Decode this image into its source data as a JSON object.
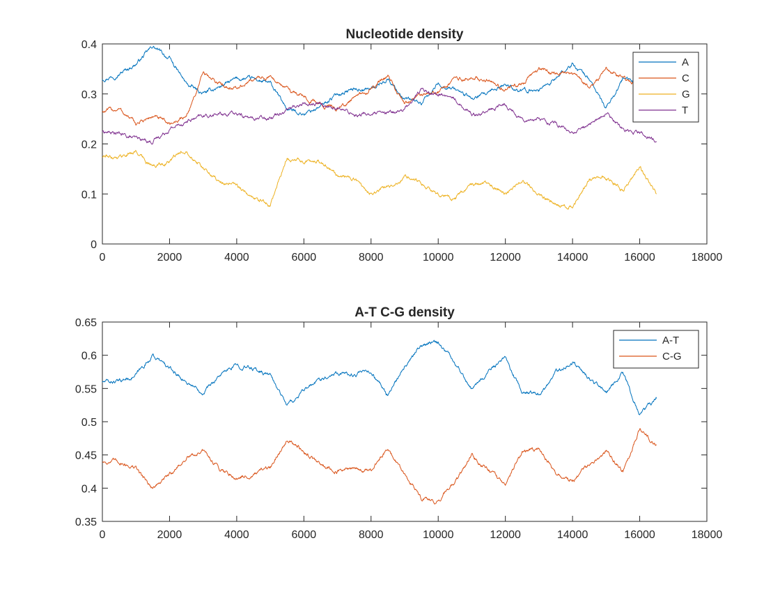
{
  "chart_data": [
    {
      "type": "line",
      "title": "Nucleotide density",
      "xlabel": "",
      "ylabel": "",
      "xlim": [
        0,
        18000
      ],
      "ylim": [
        0,
        0.4
      ],
      "xticks": [
        0,
        2000,
        4000,
        6000,
        8000,
        10000,
        12000,
        14000,
        16000,
        18000
      ],
      "xtick_labels": [
        "0",
        "2000",
        "4000",
        "6000",
        "8000",
        "10000",
        "12000",
        "14000",
        "16000",
        "18000"
      ],
      "yticks": [
        0,
        0.1,
        0.2,
        0.3,
        0.4
      ],
      "ytick_labels": [
        "0",
        "0.1",
        "0.2",
        "0.3",
        "0.4"
      ],
      "grid": false,
      "legend_position": "top-right",
      "x": [
        0,
        500,
        1000,
        1500,
        2000,
        2500,
        3000,
        3500,
        4000,
        4500,
        5000,
        5500,
        6000,
        6500,
        7000,
        7500,
        8000,
        8500,
        9000,
        9500,
        10000,
        10500,
        11000,
        11500,
        12000,
        12500,
        13000,
        13500,
        14000,
        14500,
        15000,
        15500,
        16000,
        16500
      ],
      "series": [
        {
          "name": "A",
          "color": "#0072BD",
          "values": [
            0.33,
            0.34,
            0.36,
            0.395,
            0.37,
            0.32,
            0.3,
            0.315,
            0.33,
            0.33,
            0.32,
            0.27,
            0.26,
            0.275,
            0.3,
            0.31,
            0.31,
            0.33,
            0.29,
            0.28,
            0.32,
            0.31,
            0.29,
            0.3,
            0.32,
            0.305,
            0.31,
            0.33,
            0.36,
            0.33,
            0.27,
            0.33,
            0.32,
            0.3
          ]
        },
        {
          "name": "C",
          "color": "#D95319",
          "values": [
            0.265,
            0.27,
            0.24,
            0.255,
            0.24,
            0.255,
            0.34,
            0.32,
            0.31,
            0.33,
            0.335,
            0.31,
            0.295,
            0.28,
            0.27,
            0.29,
            0.31,
            0.335,
            0.28,
            0.3,
            0.305,
            0.33,
            0.33,
            0.33,
            0.31,
            0.32,
            0.35,
            0.34,
            0.34,
            0.31,
            0.35,
            0.33,
            0.32,
            0.31
          ]
        },
        {
          "name": "G",
          "color": "#EDB120",
          "values": [
            0.175,
            0.175,
            0.185,
            0.155,
            0.165,
            0.19,
            0.15,
            0.125,
            0.115,
            0.09,
            0.08,
            0.17,
            0.165,
            0.165,
            0.14,
            0.13,
            0.1,
            0.115,
            0.135,
            0.12,
            0.1,
            0.09,
            0.12,
            0.12,
            0.1,
            0.13,
            0.1,
            0.08,
            0.075,
            0.13,
            0.13,
            0.11,
            0.155,
            0.1
          ]
        },
        {
          "name": "T",
          "color": "#7E2F8E",
          "values": [
            0.225,
            0.22,
            0.21,
            0.205,
            0.23,
            0.245,
            0.255,
            0.26,
            0.26,
            0.25,
            0.255,
            0.27,
            0.28,
            0.28,
            0.27,
            0.26,
            0.26,
            0.26,
            0.27,
            0.31,
            0.3,
            0.29,
            0.26,
            0.265,
            0.28,
            0.25,
            0.25,
            0.24,
            0.22,
            0.24,
            0.26,
            0.23,
            0.225,
            0.205
          ]
        }
      ]
    },
    {
      "type": "line",
      "title": "A-T C-G density",
      "xlabel": "",
      "ylabel": "",
      "xlim": [
        0,
        18000
      ],
      "ylim": [
        0.35,
        0.65
      ],
      "xticks": [
        0,
        2000,
        4000,
        6000,
        8000,
        10000,
        12000,
        14000,
        16000,
        18000
      ],
      "xtick_labels": [
        "0",
        "2000",
        "4000",
        "6000",
        "8000",
        "10000",
        "12000",
        "14000",
        "16000",
        "18000"
      ],
      "yticks": [
        0.35,
        0.4,
        0.45,
        0.5,
        0.55,
        0.6,
        0.65
      ],
      "ytick_labels": [
        "0.35",
        "0.4",
        "0.45",
        "0.5",
        "0.55",
        "0.6",
        "0.65"
      ],
      "grid": false,
      "legend_position": "top-right",
      "x": [
        0,
        500,
        1000,
        1500,
        2000,
        2500,
        3000,
        3500,
        4000,
        4500,
        5000,
        5500,
        6000,
        6500,
        7000,
        7500,
        8000,
        8500,
        9000,
        9500,
        10000,
        10500,
        11000,
        11500,
        12000,
        12500,
        13000,
        13500,
        14000,
        14500,
        15000,
        15500,
        16000,
        16500
      ],
      "series": [
        {
          "name": "A-T",
          "color": "#0072BD",
          "values": [
            0.56,
            0.56,
            0.57,
            0.6,
            0.58,
            0.56,
            0.545,
            0.57,
            0.585,
            0.58,
            0.57,
            0.525,
            0.545,
            0.565,
            0.575,
            0.57,
            0.575,
            0.54,
            0.58,
            0.615,
            0.62,
            0.59,
            0.55,
            0.575,
            0.595,
            0.545,
            0.54,
            0.575,
            0.59,
            0.565,
            0.545,
            0.575,
            0.51,
            0.535
          ]
        },
        {
          "name": "C-G",
          "color": "#D95319",
          "values": [
            0.44,
            0.44,
            0.43,
            0.4,
            0.42,
            0.445,
            0.455,
            0.43,
            0.415,
            0.42,
            0.43,
            0.475,
            0.455,
            0.435,
            0.425,
            0.43,
            0.425,
            0.46,
            0.42,
            0.385,
            0.38,
            0.41,
            0.45,
            0.425,
            0.405,
            0.455,
            0.46,
            0.425,
            0.41,
            0.435,
            0.455,
            0.425,
            0.49,
            0.465
          ]
        }
      ]
    }
  ]
}
